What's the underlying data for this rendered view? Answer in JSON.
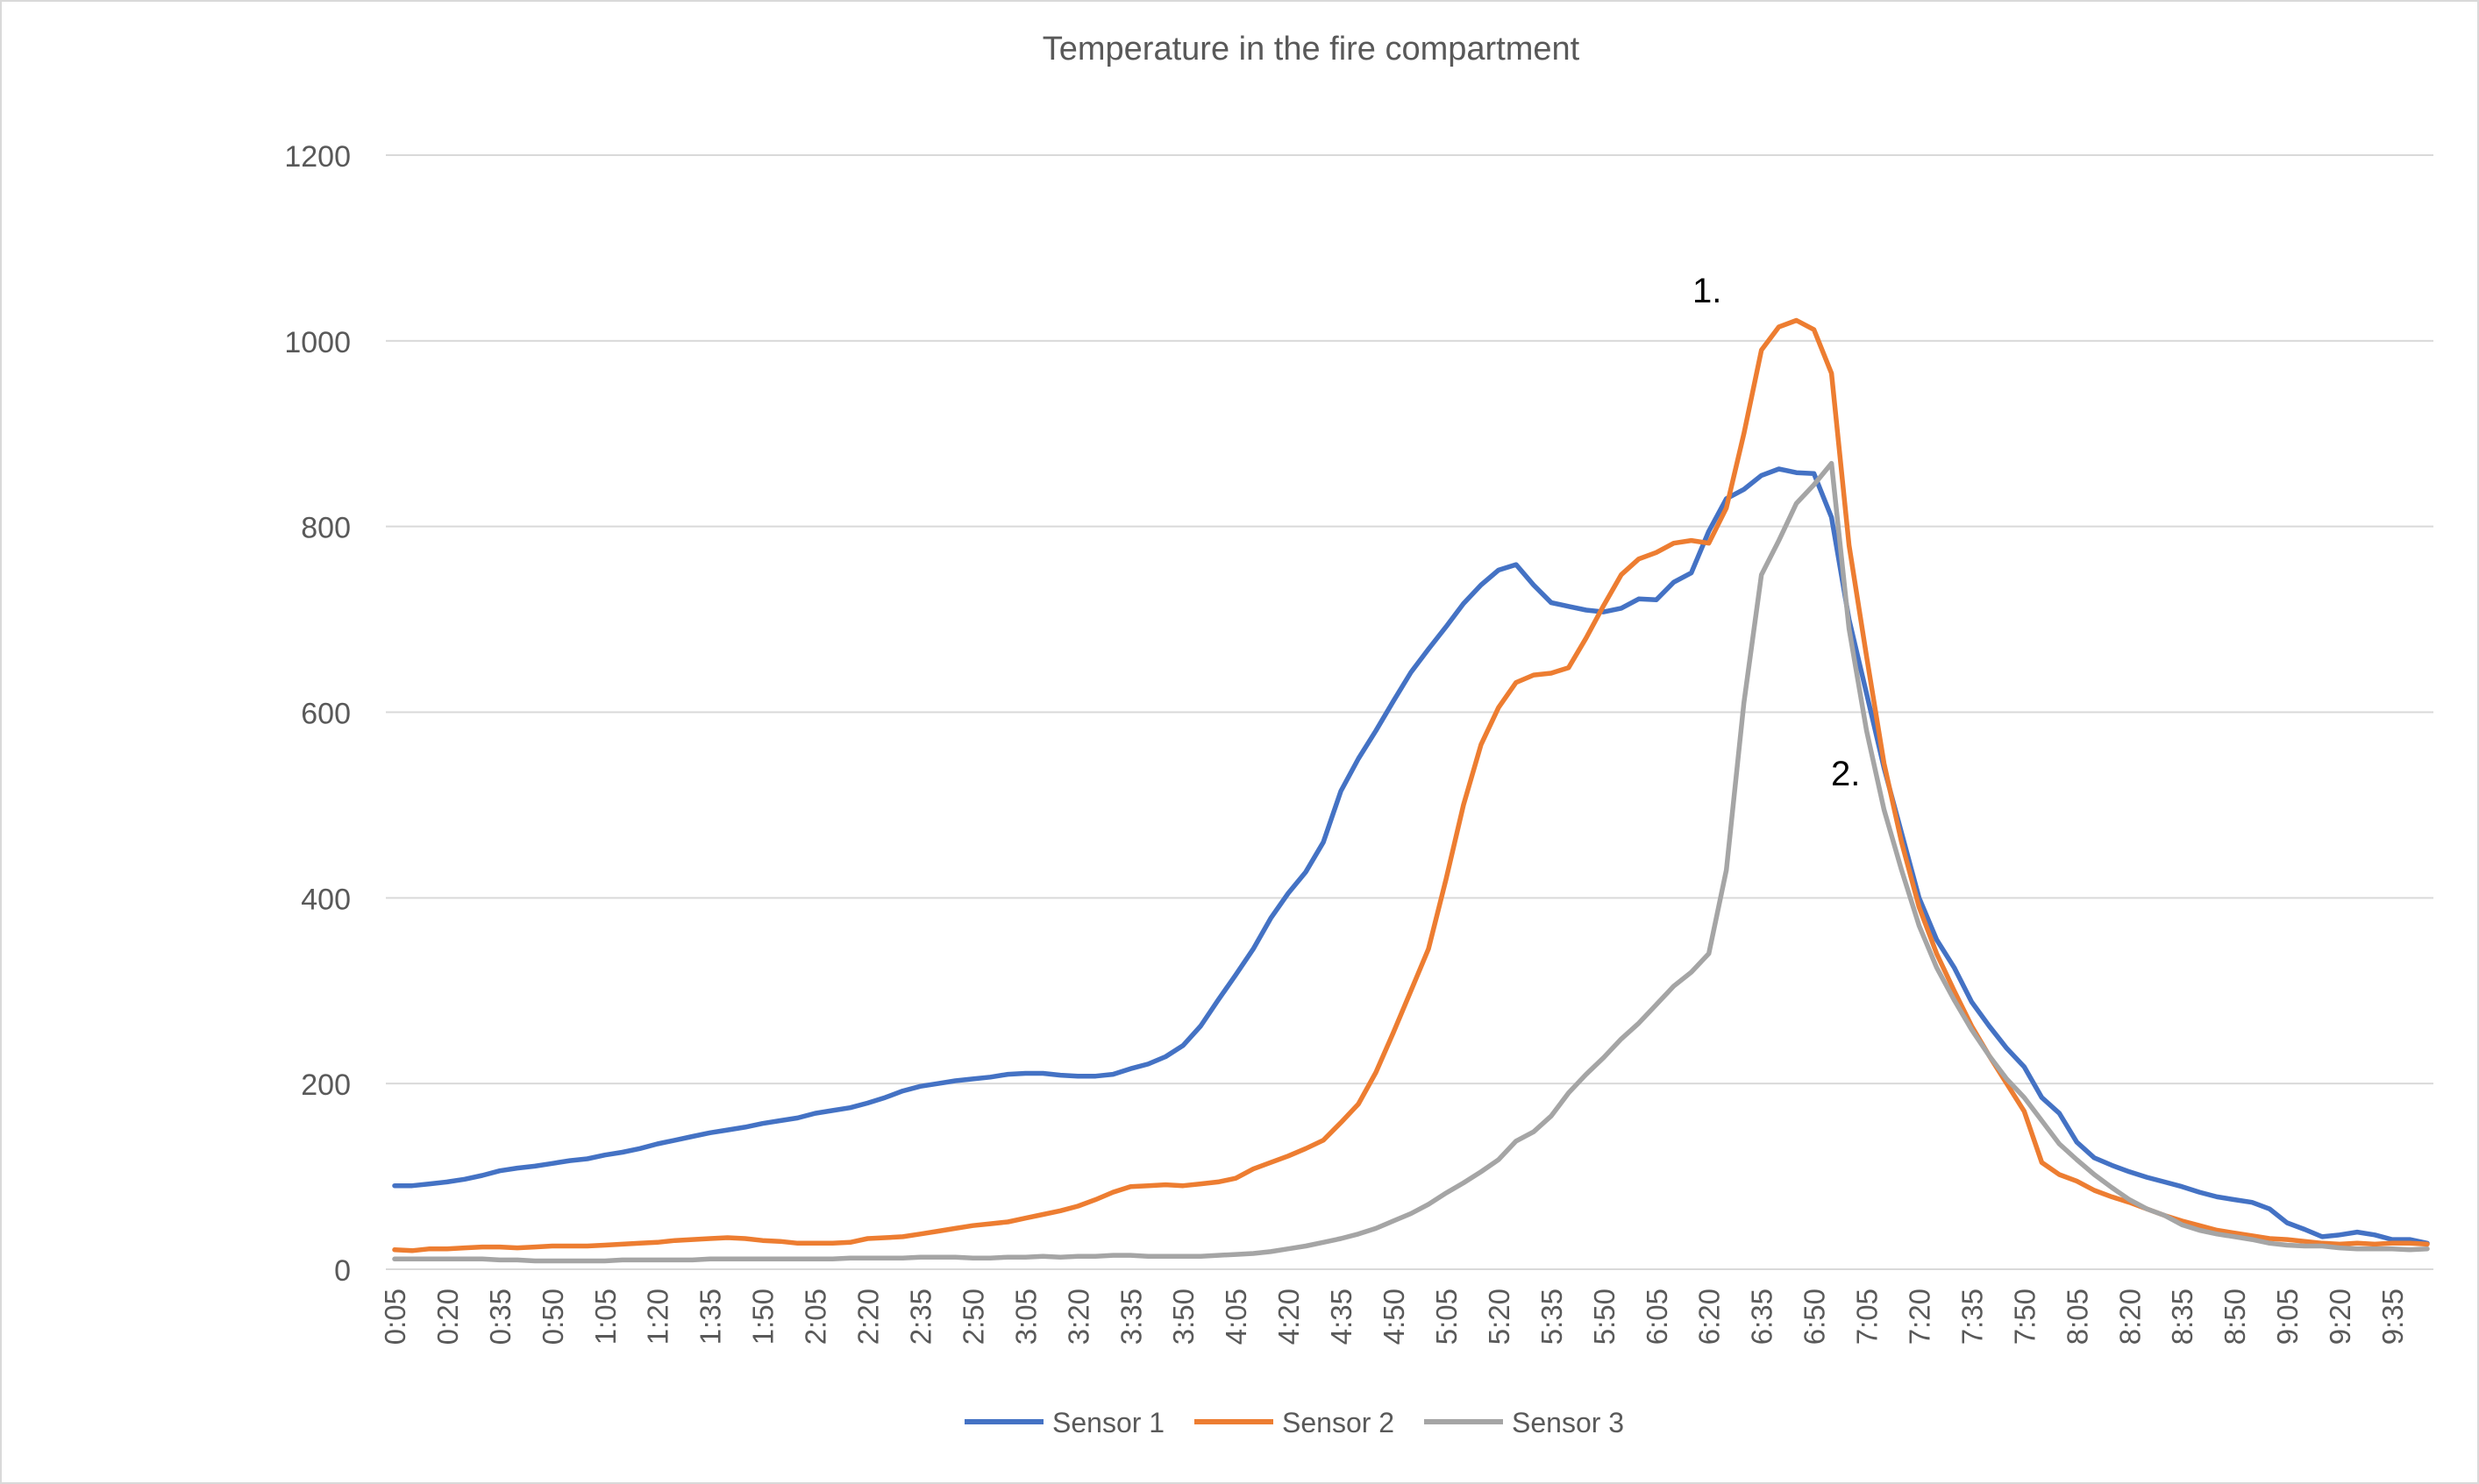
{
  "chart_data": {
    "type": "line",
    "title": "Temperature in the fire compartment",
    "xlabel": "",
    "ylabel": "",
    "ylim": [
      0,
      1200
    ],
    "yticks": [
      0,
      200,
      400,
      600,
      800,
      1000,
      1200
    ],
    "grid": true,
    "legend_position": "bottom",
    "x_start": "0:05",
    "x_step_minutes": 5,
    "x_tick_every": 3,
    "series": [
      {
        "name": "Sensor 1",
        "color": "#4472C4",
        "values": [
          90,
          90,
          92,
          94,
          97,
          101,
          106,
          109,
          111,
          114,
          117,
          119,
          123,
          126,
          130,
          135,
          139,
          143,
          147,
          150,
          153,
          157,
          160,
          163,
          168,
          171,
          174,
          179,
          185,
          192,
          197,
          200,
          203,
          205,
          207,
          210,
          211,
          211,
          209,
          208,
          208,
          210,
          216,
          221,
          229,
          241,
          262,
          290,
          317,
          345,
          378,
          405,
          428,
          460,
          515,
          550,
          580,
          612,
          643,
          668,
          692,
          717,
          737,
          753,
          759,
          737,
          718,
          714,
          710,
          708,
          712,
          722,
          721,
          740,
          750,
          795,
          830,
          840,
          855,
          862,
          858,
          857,
          810,
          700,
          620,
          540,
          470,
          400,
          355,
          325,
          288,
          262,
          238,
          218,
          185,
          168,
          137,
          120,
          112,
          105,
          99,
          94,
          89,
          83,
          78,
          75,
          72,
          65,
          50,
          43,
          35,
          37,
          40,
          37,
          32,
          32,
          28
        ]
      },
      {
        "name": "Sensor 2",
        "color": "#ED7D31",
        "values": [
          21,
          20,
          22,
          22,
          23,
          24,
          24,
          23,
          24,
          25,
          25,
          25,
          26,
          27,
          28,
          29,
          31,
          32,
          33,
          34,
          33,
          31,
          30,
          28,
          28,
          28,
          29,
          33,
          34,
          35,
          38,
          41,
          44,
          47,
          49,
          51,
          55,
          59,
          63,
          68,
          75,
          83,
          89,
          90,
          91,
          90,
          92,
          94,
          98,
          108,
          115,
          122,
          130,
          139,
          158,
          178,
          212,
          255,
          300,
          345,
          420,
          500,
          565,
          605,
          632,
          640,
          642,
          648,
          680,
          715,
          748,
          765,
          772,
          782,
          785,
          782,
          820,
          900,
          990,
          1015,
          1022,
          1012,
          965,
          780,
          660,
          545,
          460,
          390,
          340,
          300,
          262,
          230,
          200,
          170,
          115,
          102,
          95,
          85,
          78,
          72,
          65,
          58,
          52,
          47,
          42,
          39,
          36,
          33,
          32,
          30,
          28,
          27,
          28,
          27,
          28,
          28,
          27
        ]
      },
      {
        "name": "Sensor 3",
        "color": "#A5A5A5",
        "values": [
          11,
          11,
          11,
          11,
          11,
          11,
          10,
          10,
          9,
          9,
          9,
          9,
          9,
          10,
          10,
          10,
          10,
          10,
          11,
          11,
          11,
          11,
          11,
          11,
          11,
          11,
          12,
          12,
          12,
          12,
          13,
          13,
          13,
          12,
          12,
          13,
          13,
          14,
          13,
          14,
          14,
          15,
          15,
          14,
          14,
          14,
          14,
          15,
          16,
          17,
          19,
          22,
          25,
          29,
          33,
          38,
          44,
          52,
          60,
          70,
          82,
          93,
          105,
          118,
          138,
          148,
          165,
          190,
          210,
          228,
          248,
          265,
          285,
          305,
          320,
          340,
          430,
          610,
          748,
          785,
          825,
          845,
          868,
          690,
          580,
          495,
          430,
          370,
          325,
          290,
          258,
          230,
          205,
          185,
          160,
          135,
          118,
          102,
          88,
          75,
          65,
          58,
          48,
          42,
          38,
          35,
          32,
          28,
          26,
          25,
          25,
          23,
          22,
          22,
          22,
          21,
          22
        ]
      }
    ],
    "annotations": [
      {
        "text": "1.",
        "near": "Sensor 2 peak"
      },
      {
        "text": "2.",
        "near": "descending curves"
      }
    ]
  }
}
